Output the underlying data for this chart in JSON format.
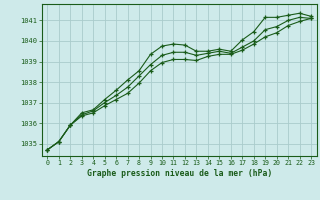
{
  "title": "Graphe pression niveau de la mer (hPa)",
  "bg_color": "#ceeaea",
  "grid_color": "#aacccc",
  "line_color": "#1a5c1a",
  "marker_color": "#1a5c1a",
  "xlim": [
    -0.5,
    23.5
  ],
  "ylim": [
    1034.4,
    1041.8
  ],
  "yticks": [
    1035,
    1036,
    1037,
    1038,
    1039,
    1040,
    1041
  ],
  "xticks": [
    0,
    1,
    2,
    3,
    4,
    5,
    6,
    7,
    8,
    9,
    10,
    11,
    12,
    13,
    14,
    15,
    16,
    17,
    18,
    19,
    20,
    21,
    22,
    23
  ],
  "series": [
    [
      1034.7,
      1035.1,
      1035.9,
      1036.5,
      1036.65,
      1037.15,
      1037.6,
      1038.1,
      1038.55,
      1039.35,
      1039.75,
      1039.85,
      1039.8,
      1039.5,
      1039.5,
      1039.6,
      1039.5,
      1040.05,
      1040.45,
      1041.15,
      1041.15,
      1041.25,
      1041.35,
      1041.2
    ],
    [
      1034.7,
      1035.1,
      1035.9,
      1036.4,
      1036.6,
      1037.0,
      1037.35,
      1037.75,
      1038.3,
      1038.85,
      1039.3,
      1039.45,
      1039.45,
      1039.3,
      1039.4,
      1039.5,
      1039.4,
      1039.7,
      1040.0,
      1040.55,
      1040.7,
      1041.0,
      1041.15,
      1041.1
    ],
    [
      1034.7,
      1035.1,
      1035.9,
      1036.35,
      1036.5,
      1036.85,
      1037.15,
      1037.45,
      1037.95,
      1038.55,
      1038.95,
      1039.1,
      1039.1,
      1039.05,
      1039.25,
      1039.35,
      1039.35,
      1039.55,
      1039.85,
      1040.2,
      1040.4,
      1040.75,
      1040.95,
      1041.1
    ]
  ]
}
